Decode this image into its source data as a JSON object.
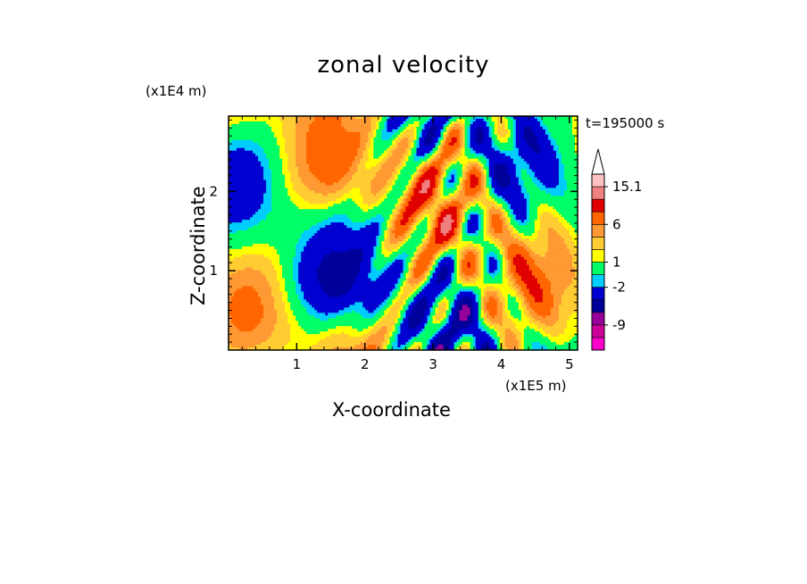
{
  "chart_data": {
    "type": "heatmap",
    "title": "zonal velocity",
    "xlabel": "X-coordinate",
    "ylabel": "Z-coordinate",
    "x_unit": "(x1E5 m)",
    "y_unit": "(x1E4 m)",
    "time_label": "t=195000 s",
    "xlim": [
      0,
      5.12
    ],
    "ylim": [
      0,
      2.95
    ],
    "x_ticks": [
      "1",
      "2",
      "3",
      "4",
      "5"
    ],
    "y_ticks": [
      "1",
      "2"
    ],
    "colorbar": {
      "labels": [
        "15.1",
        "6",
        "1",
        "-2",
        "-9"
      ],
      "colors": [
        "#ff00cc",
        "#cc0099",
        "#990099",
        "#00009a",
        "#0000d0",
        "#00ccff",
        "#00ff66",
        "#ffff00",
        "#ffcc33",
        "#ff9933",
        "#ff6600",
        "#e00000",
        "#f08080",
        "#ffc0c0"
      ],
      "extend_top": true
    },
    "field_description": "zonal velocity contour field"
  }
}
